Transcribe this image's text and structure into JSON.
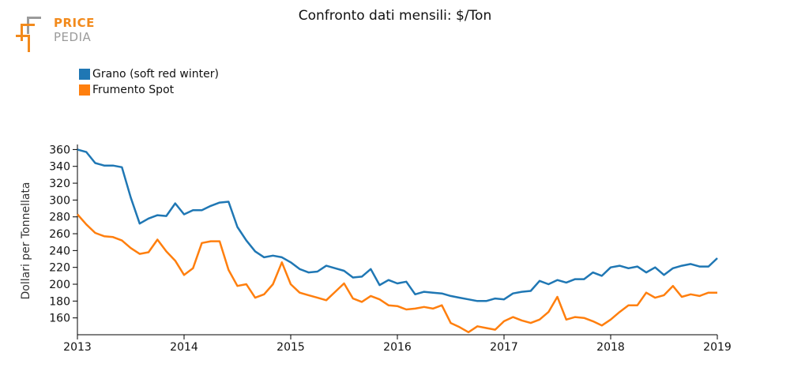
{
  "header": {
    "title": "Confronto dati mensili: $/Ton"
  },
  "logo": {
    "line1": "PRICE",
    "line2": "PEDIA",
    "color_primary": "#f28a1c",
    "color_secondary": "#9b9b9b"
  },
  "chart_data": {
    "type": "line",
    "title": "Confronto dati mensili: $/Ton",
    "xlabel": "",
    "ylabel": "Dollari per Tonnellata",
    "x_ticks": [
      "2013",
      "2014",
      "2015",
      "2016",
      "2017",
      "2018",
      "2019"
    ],
    "y_ticks": [
      160,
      180,
      200,
      220,
      240,
      260,
      280,
      300,
      320,
      340,
      360
    ],
    "ylim": [
      140,
      366
    ],
    "xlim": [
      "2013-01",
      "2019-01"
    ],
    "legend_position": "top-left",
    "grid": false,
    "x": [
      "2013-01",
      "2013-02",
      "2013-03",
      "2013-04",
      "2013-05",
      "2013-06",
      "2013-07",
      "2013-08",
      "2013-09",
      "2013-10",
      "2013-11",
      "2013-12",
      "2014-01",
      "2014-02",
      "2014-03",
      "2014-04",
      "2014-05",
      "2014-06",
      "2014-07",
      "2014-08",
      "2014-09",
      "2014-10",
      "2014-11",
      "2014-12",
      "2015-01",
      "2015-02",
      "2015-03",
      "2015-04",
      "2015-05",
      "2015-06",
      "2015-07",
      "2015-08",
      "2015-09",
      "2015-10",
      "2015-11",
      "2015-12",
      "2016-01",
      "2016-02",
      "2016-03",
      "2016-04",
      "2016-05",
      "2016-06",
      "2016-07",
      "2016-08",
      "2016-09",
      "2016-10",
      "2016-11",
      "2016-12",
      "2017-01",
      "2017-02",
      "2017-03",
      "2017-04",
      "2017-05",
      "2017-06",
      "2017-07",
      "2017-08",
      "2017-09",
      "2017-10",
      "2017-11",
      "2017-12",
      "2018-01",
      "2018-02",
      "2018-03",
      "2018-04",
      "2018-05",
      "2018-06",
      "2018-07",
      "2018-08",
      "2018-09",
      "2018-10",
      "2018-11",
      "2018-12",
      "2019-01"
    ],
    "series": [
      {
        "name": "Grano (soft red winter)",
        "color": "#1f77b4",
        "values": [
          360,
          357,
          344,
          341,
          341,
          339,
          303,
          272,
          278,
          282,
          281,
          296,
          283,
          288,
          288,
          293,
          297,
          298,
          268,
          252,
          239,
          232,
          234,
          232,
          226,
          218,
          214,
          215,
          222,
          219,
          216,
          208,
          209,
          218,
          199,
          205,
          201,
          203,
          188,
          191,
          190,
          189,
          186,
          184,
          182,
          180,
          180,
          183,
          182,
          189,
          191,
          192,
          204,
          200,
          205,
          202,
          206,
          206,
          214,
          210,
          220,
          222,
          219,
          221,
          214,
          220,
          211,
          219,
          222,
          224,
          221,
          221,
          231
        ]
      },
      {
        "name": "Frumento Spot",
        "color": "#ff7f0e",
        "values": [
          283,
          271,
          261,
          257,
          256,
          252,
          243,
          236,
          238,
          253,
          239,
          228,
          211,
          219,
          249,
          251,
          251,
          217,
          198,
          200,
          184,
          188,
          200,
          226,
          200,
          190,
          187,
          184,
          181,
          191,
          201,
          183,
          179,
          186,
          182,
          175,
          174,
          170,
          171,
          173,
          171,
          175,
          154,
          149,
          143,
          150,
          148,
          146,
          156,
          161,
          157,
          154,
          158,
          167,
          185,
          158,
          161,
          160,
          156,
          151,
          158,
          167,
          175,
          175,
          190,
          184,
          187,
          198,
          185,
          188,
          186,
          190,
          190
        ]
      }
    ]
  }
}
